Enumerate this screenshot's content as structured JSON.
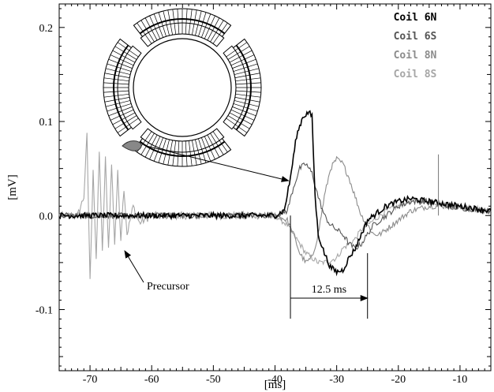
{
  "chart_data": {
    "type": "line",
    "title": "",
    "xlabel": "[ms]",
    "ylabel": "[mV]",
    "xlim": [
      -75,
      -5
    ],
    "ylim": [
      -0.165,
      0.225
    ],
    "x_ticks": [
      -70,
      -60,
      -50,
      -40,
      -30,
      -20,
      -10
    ],
    "x_tick_labels": [
      "-70",
      "-60",
      "-50",
      "-40",
      "-30",
      "-20",
      "-10"
    ],
    "y_ticks": [
      0.2,
      0.1,
      0.0,
      -0.1
    ],
    "y_tick_labels": [
      "0.2",
      "0.1",
      "0.0",
      "-0.1"
    ],
    "grid": false,
    "legend_position": "top-right",
    "series": [
      {
        "name": "Coil 6N",
        "color": "#000000",
        "x": [
          -75,
          -40,
          -38.5,
          -37.5,
          -36.5,
          -35.5,
          -34.5,
          -34,
          -33.5,
          -33,
          -32,
          -31,
          -30,
          -29,
          -28,
          -27,
          -26,
          -25,
          -24,
          -23,
          -22,
          -20,
          -18,
          -15,
          -12,
          -10,
          -5
        ],
        "values": [
          0.0,
          0.0,
          0.005,
          0.04,
          0.085,
          0.105,
          0.11,
          0.105,
          0.02,
          -0.02,
          -0.04,
          -0.055,
          -0.06,
          -0.058,
          -0.045,
          -0.035,
          -0.02,
          -0.005,
          0.0,
          0.005,
          0.01,
          0.015,
          0.018,
          0.015,
          0.012,
          0.01,
          0.005
        ]
      },
      {
        "name": "Coil 6S",
        "color": "#555555",
        "x": [
          -75,
          -40,
          -38,
          -37,
          -36,
          -35,
          -34,
          -33,
          -32,
          -31,
          -30,
          -29,
          -28,
          -27,
          -26,
          -25,
          -24,
          -22,
          -20,
          -18,
          -15,
          -12,
          -10,
          -5
        ],
        "values": [
          0.0,
          0.0,
          0.005,
          0.03,
          0.05,
          0.055,
          0.045,
          0.02,
          0.0,
          -0.01,
          -0.015,
          -0.02,
          -0.03,
          -0.035,
          -0.03,
          -0.02,
          -0.01,
          0.0,
          0.01,
          0.015,
          0.015,
          0.01,
          0.008,
          0.005
        ]
      },
      {
        "name": "Coil 8N",
        "color": "#8c8c8c",
        "x": [
          -75,
          -40,
          -38,
          -37,
          -36,
          -35,
          -34,
          -33,
          -32,
          -31,
          -30,
          -29,
          -28,
          -27,
          -26,
          -25,
          -24,
          -23,
          -22,
          -20,
          -18,
          -15,
          -12,
          -10,
          -5
        ],
        "values": [
          0.0,
          0.0,
          -0.005,
          -0.02,
          -0.04,
          -0.05,
          -0.045,
          -0.02,
          0.02,
          0.05,
          0.06,
          0.055,
          0.04,
          0.02,
          0.0,
          -0.01,
          -0.02,
          -0.02,
          -0.015,
          -0.005,
          0.005,
          0.01,
          0.01,
          0.008,
          0.005
        ]
      },
      {
        "name": "Coil 8S",
        "color": "#a6a6a6",
        "x": [
          -75,
          -72,
          -71,
          -70.5,
          -70,
          -69.5,
          -69,
          -68.5,
          -68,
          -67.5,
          -67,
          -66.5,
          -66,
          -65.5,
          -65,
          -64.5,
          -64,
          -63,
          -62,
          -60,
          -40,
          -38,
          -37,
          -36,
          -35,
          -34,
          -33,
          -32,
          -31,
          -30,
          -29,
          -28,
          -27,
          -26,
          -24,
          -22,
          -20,
          -18,
          -15,
          -12,
          -10,
          -5
        ],
        "values": [
          0.0,
          0.0,
          0.02,
          0.085,
          -0.07,
          0.05,
          -0.05,
          0.07,
          -0.04,
          0.06,
          -0.035,
          0.055,
          -0.03,
          0.045,
          -0.025,
          0.03,
          -0.02,
          0.01,
          -0.008,
          0.0,
          0.0,
          -0.01,
          -0.02,
          -0.03,
          -0.04,
          -0.045,
          -0.05,
          -0.05,
          -0.048,
          -0.045,
          -0.035,
          -0.03,
          -0.025,
          -0.015,
          -0.005,
          0.005,
          0.01,
          0.015,
          0.015,
          0.012,
          0.01,
          0.005
        ]
      }
    ],
    "annotations": [
      {
        "text": "Precursor",
        "type": "arrow-label"
      },
      {
        "text": "12.5 ms",
        "type": "interval",
        "from": -37.5,
        "to": -25
      }
    ]
  }
}
